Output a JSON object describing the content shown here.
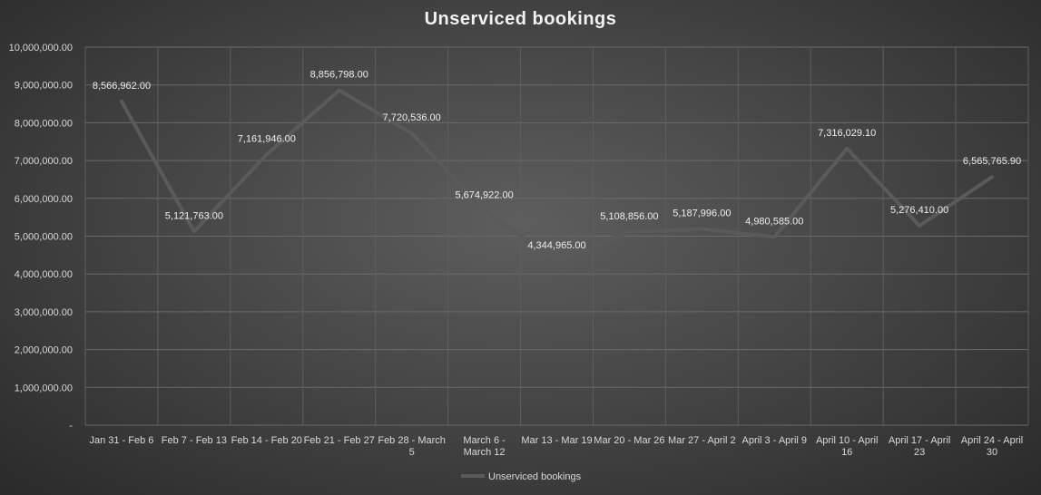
{
  "chart_data": {
    "type": "line",
    "title": "Unserviced  bookings",
    "xlabel": "",
    "ylabel": "",
    "ylim": [
      0,
      10000000
    ],
    "yticks": [
      "-",
      "1,000,000.00",
      "2,000,000.00",
      "3,000,000.00",
      "4,000,000.00",
      "5,000,000.00",
      "6,000,000.00",
      "7,000,000.00",
      "8,000,000.00",
      "9,000,000.00",
      "10,000,000.00"
    ],
    "categories": [
      [
        "Jan 31 - Feb 6"
      ],
      [
        "Feb 7 - Feb 13"
      ],
      [
        "Feb 14 - Feb 20"
      ],
      [
        "Feb 21 - Feb 27"
      ],
      [
        "Feb 28 - March",
        "5"
      ],
      [
        "March 6 -",
        "March 12"
      ],
      [
        "Mar 13 - Mar 19"
      ],
      [
        "Mar 20 - Mar 26"
      ],
      [
        "Mar 27 - April 2"
      ],
      [
        "April 3 - April 9"
      ],
      [
        "April 10 - April",
        "16"
      ],
      [
        "April 17 - April",
        "23"
      ],
      [
        "April 24 - April",
        "30"
      ]
    ],
    "series": [
      {
        "name": "Unserviced bookings",
        "color": "#5a5a5a",
        "values": [
          8566962.0,
          5121763.0,
          7161946.0,
          8856798.0,
          7720536.0,
          5674922.0,
          4344965.0,
          5108856.0,
          5187996.0,
          4980585.0,
          7316029.1,
          5276410.0,
          6565765.9
        ],
        "labels": [
          "8,566,962.00",
          "5,121,763.00",
          "7,161,946.00",
          "8,856,798.00",
          "7,720,536.00",
          "5,674,922.00",
          "4,344,965.00",
          "5,108,856.00",
          "5,187,996.00",
          "4,980,585.00",
          "7,316,029.10",
          "5,276,410.00",
          "6,565,765.90"
        ]
      }
    ],
    "grid": true,
    "legend": "bottom"
  }
}
